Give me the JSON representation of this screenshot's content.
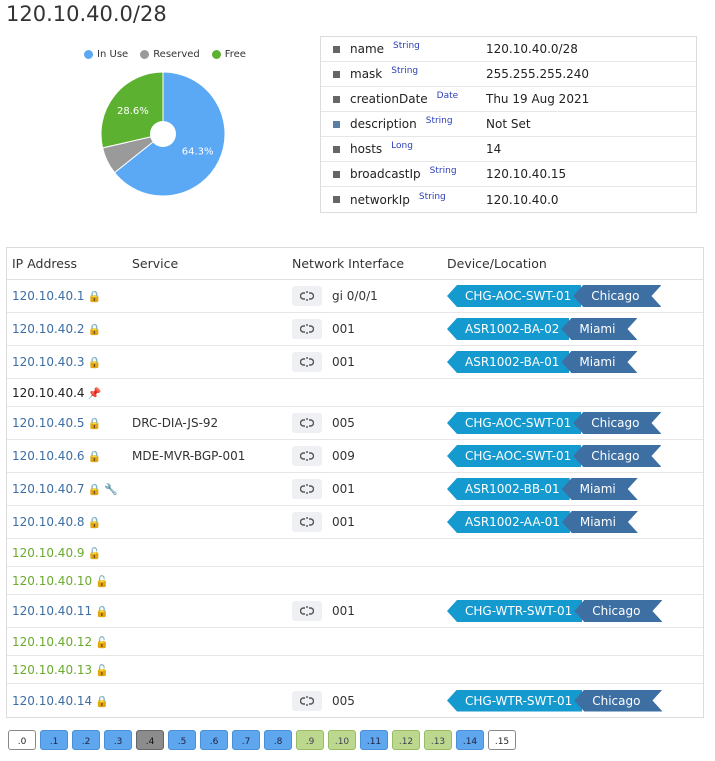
{
  "page": {
    "title": "120.10.40.0/28"
  },
  "chart_data": {
    "type": "pie",
    "legend": [
      "In Use",
      "Reserved",
      "Free"
    ],
    "legend_position": "top",
    "slices": [
      {
        "name": "In Use",
        "value": 64.3,
        "label": "64.3%",
        "color": "#5ba8f5"
      },
      {
        "name": "Reserved",
        "value": 7.1,
        "label": "",
        "color": "#9a9a9a"
      },
      {
        "name": "Free",
        "value": 28.6,
        "label": "28.6%",
        "color": "#5cb230"
      }
    ]
  },
  "properties": [
    {
      "key": "name",
      "type": "String",
      "value": "120.10.40.0/28",
      "accent": false
    },
    {
      "key": "mask",
      "type": "String",
      "value": "255.255.255.240",
      "accent": false
    },
    {
      "key": "creationDate",
      "type": "Date",
      "value": "Thu 19 Aug 2021",
      "accent": false
    },
    {
      "key": "description",
      "type": "String",
      "value": "Not Set",
      "accent": true
    },
    {
      "key": "hosts",
      "type": "Long",
      "value": "14",
      "accent": false
    },
    {
      "key": "broadcastIp",
      "type": "String",
      "value": "120.10.40.15",
      "accent": false
    },
    {
      "key": "networkIp",
      "type": "String",
      "value": "120.10.40.0",
      "accent": false
    }
  ],
  "table": {
    "headers": {
      "ip": "IP Address",
      "service": "Service",
      "interface": "Network Interface",
      "device": "Device/Location"
    },
    "rows": [
      {
        "ip": "120.10.40.1",
        "status": "used",
        "icons": [
          "lock-icon"
        ],
        "service": "",
        "interface": "gi 0/0/1",
        "device": "CHG-AOC-SWT-01",
        "location": "Chicago"
      },
      {
        "ip": "120.10.40.2",
        "status": "used",
        "icons": [
          "lock-icon"
        ],
        "service": "",
        "interface": "001",
        "device": "ASR1002-BA-02",
        "location": "Miami"
      },
      {
        "ip": "120.10.40.3",
        "status": "used",
        "icons": [
          "lock-icon"
        ],
        "service": "",
        "interface": "001",
        "device": "ASR1002-BA-01",
        "location": "Miami"
      },
      {
        "ip": "120.10.40.4",
        "status": "reserved",
        "icons": [
          "pin-icon"
        ],
        "service": "",
        "interface": "",
        "device": "",
        "location": ""
      },
      {
        "ip": "120.10.40.5",
        "status": "used",
        "icons": [
          "lock-icon"
        ],
        "service": "DRC-DIA-JS-92",
        "interface": "005",
        "device": "CHG-AOC-SWT-01",
        "location": "Chicago"
      },
      {
        "ip": "120.10.40.6",
        "status": "used",
        "icons": [
          "lock-icon"
        ],
        "service": "MDE-MVR-BGP-001",
        "interface": "009",
        "device": "CHG-AOC-SWT-01",
        "location": "Chicago"
      },
      {
        "ip": "120.10.40.7",
        "status": "used",
        "icons": [
          "lock-icon",
          "wrench-icon"
        ],
        "service": "",
        "interface": "001",
        "device": "ASR1002-BB-01",
        "location": "Miami"
      },
      {
        "ip": "120.10.40.8",
        "status": "used",
        "icons": [
          "lock-icon"
        ],
        "service": "",
        "interface": "001",
        "device": "ASR1002-AA-01",
        "location": "Miami"
      },
      {
        "ip": "120.10.40.9",
        "status": "free",
        "icons": [
          "unlock-icon"
        ],
        "service": "",
        "interface": "",
        "device": "",
        "location": ""
      },
      {
        "ip": "120.10.40.10",
        "status": "free",
        "icons": [
          "unlock-icon"
        ],
        "service": "",
        "interface": "",
        "device": "",
        "location": ""
      },
      {
        "ip": "120.10.40.11",
        "status": "used",
        "icons": [
          "lock-icon"
        ],
        "service": "",
        "interface": "001",
        "device": "CHG-WTR-SWT-01",
        "location": "Chicago"
      },
      {
        "ip": "120.10.40.12",
        "status": "free",
        "icons": [
          "unlock-icon"
        ],
        "service": "",
        "interface": "",
        "device": "",
        "location": ""
      },
      {
        "ip": "120.10.40.13",
        "status": "free",
        "icons": [
          "unlock-icon"
        ],
        "service": "",
        "interface": "",
        "device": "",
        "location": ""
      },
      {
        "ip": "120.10.40.14",
        "status": "used",
        "icons": [
          "lock-icon"
        ],
        "service": "",
        "interface": "005",
        "device": "CHG-WTR-SWT-01",
        "location": "Chicago"
      }
    ]
  },
  "pager": [
    {
      "label": ".0",
      "status": "net"
    },
    {
      "label": ".1",
      "status": "used"
    },
    {
      "label": ".2",
      "status": "used"
    },
    {
      "label": ".3",
      "status": "used"
    },
    {
      "label": ".4",
      "status": "reserved"
    },
    {
      "label": ".5",
      "status": "used"
    },
    {
      "label": ".6",
      "status": "used"
    },
    {
      "label": ".7",
      "status": "used"
    },
    {
      "label": ".8",
      "status": "used"
    },
    {
      "label": ".9",
      "status": "free"
    },
    {
      "label": ".10",
      "status": "free"
    },
    {
      "label": ".11",
      "status": "used"
    },
    {
      "label": ".12",
      "status": "free"
    },
    {
      "label": ".13",
      "status": "free"
    },
    {
      "label": ".14",
      "status": "used"
    },
    {
      "label": ".15",
      "status": "net"
    }
  ],
  "colors": {
    "device_tag": "#159ad0",
    "location_tag": "#3d6fa3",
    "ip_used": "#3d6ea3",
    "ip_free": "#6aaa2e"
  }
}
